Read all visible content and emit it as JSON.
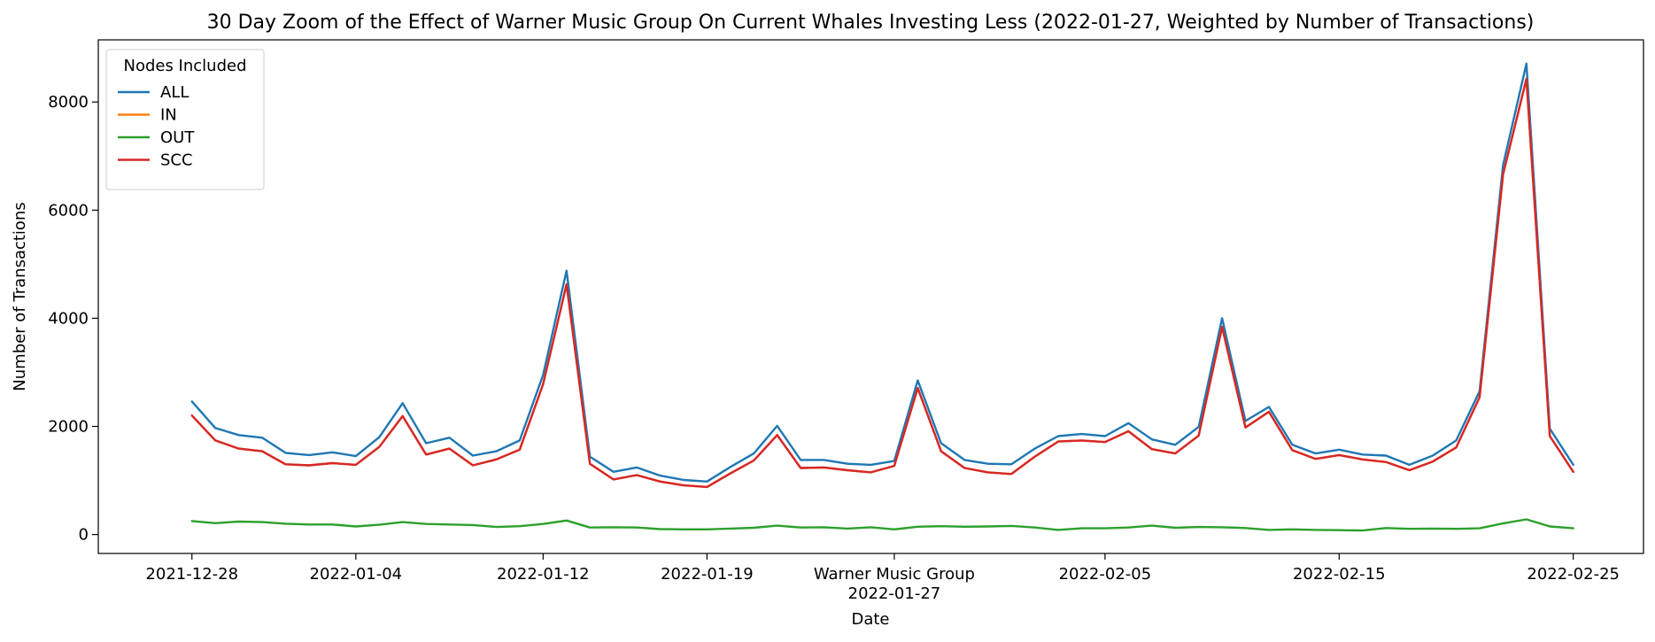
{
  "chart_data": {
    "type": "line",
    "title": "30 Day Zoom of the Effect of Warner Music Group On Current Whales Investing Less (2022-01-27, Weighted by Number of Transactions)",
    "xlabel": "Date",
    "ylabel": "Number of Transactions",
    "ylim": [
      -350,
      9150
    ],
    "xlim": [
      "2021-12-24",
      "2022-02-28"
    ],
    "x_tick_labels": [
      {
        "date": "2021-12-28",
        "label": "2021-12-28"
      },
      {
        "date": "2022-01-04",
        "label": "2022-01-04"
      },
      {
        "date": "2022-01-12",
        "label": "2022-01-12"
      },
      {
        "date": "2022-01-19",
        "label": "2022-01-19"
      },
      {
        "date": "2022-01-27",
        "label": "Warner Music Group\n2022-01-27"
      },
      {
        "date": "2022-02-05",
        "label": "2022-02-05"
      },
      {
        "date": "2022-02-15",
        "label": "2022-02-15"
      },
      {
        "date": "2022-02-25",
        "label": "2022-02-25"
      }
    ],
    "y_ticks": [
      0,
      2000,
      4000,
      6000,
      8000
    ],
    "legend": {
      "title": "Nodes Included",
      "placement": "top-left"
    },
    "x": [
      "2021-12-28",
      "2021-12-29",
      "2021-12-30",
      "2021-12-31",
      "2022-01-01",
      "2022-01-02",
      "2022-01-03",
      "2022-01-04",
      "2022-01-05",
      "2022-01-06",
      "2022-01-07",
      "2022-01-08",
      "2022-01-09",
      "2022-01-10",
      "2022-01-11",
      "2022-01-12",
      "2022-01-13",
      "2022-01-14",
      "2022-01-15",
      "2022-01-16",
      "2022-01-17",
      "2022-01-18",
      "2022-01-19",
      "2022-01-20",
      "2022-01-21",
      "2022-01-22",
      "2022-01-23",
      "2022-01-24",
      "2022-01-25",
      "2022-01-26",
      "2022-01-27",
      "2022-01-28",
      "2022-01-29",
      "2022-01-30",
      "2022-01-31",
      "2022-02-01",
      "2022-02-02",
      "2022-02-03",
      "2022-02-04",
      "2022-02-05",
      "2022-02-06",
      "2022-02-07",
      "2022-02-08",
      "2022-02-09",
      "2022-02-10",
      "2022-02-11",
      "2022-02-12",
      "2022-02-13",
      "2022-02-14",
      "2022-02-15",
      "2022-02-16",
      "2022-02-17",
      "2022-02-18",
      "2022-02-19",
      "2022-02-20",
      "2022-02-21",
      "2022-02-22",
      "2022-02-23",
      "2022-02-24",
      "2022-02-25"
    ],
    "series": [
      {
        "name": "ALL",
        "color": "#1f77b4",
        "values": [
          2460,
          1970,
          1840,
          1790,
          1510,
          1470,
          1520,
          1450,
          1800,
          2430,
          1690,
          1790,
          1460,
          1540,
          1740,
          2950,
          4880,
          1440,
          1160,
          1240,
          1090,
          1010,
          980,
          1250,
          1500,
          2010,
          1380,
          1380,
          1310,
          1290,
          1360,
          2850,
          1690,
          1380,
          1310,
          1300,
          1590,
          1820,
          1860,
          1820,
          2060,
          1760,
          1660,
          1990,
          4000,
          2100,
          2360,
          1660,
          1500,
          1570,
          1480,
          1460,
          1290,
          1460,
          1740,
          2650,
          6830,
          8710,
          1960,
          1290
        ]
      },
      {
        "name": "IN",
        "color": "#ff7f0e",
        "values": [
          2200,
          1740,
          1590,
          1540,
          1300,
          1280,
          1320,
          1290,
          1620,
          2190,
          1480,
          1590,
          1280,
          1390,
          1570,
          2780,
          4630,
          1310,
          1020,
          1100,
          980,
          910,
          880,
          1130,
          1370,
          1840,
          1230,
          1240,
          1190,
          1150,
          1270,
          2710,
          1540,
          1230,
          1150,
          1120,
          1440,
          1720,
          1740,
          1710,
          1910,
          1580,
          1500,
          1830,
          3840,
          1980,
          2270,
          1560,
          1400,
          1470,
          1390,
          1340,
          1190,
          1350,
          1610,
          2540,
          6660,
          8430,
          1820,
          1160
        ]
      },
      {
        "name": "OUT",
        "color": "#2ca02c",
        "values": [
          250,
          210,
          240,
          230,
          200,
          185,
          185,
          150,
          180,
          230,
          195,
          185,
          175,
          140,
          155,
          195,
          260,
          130,
          135,
          130,
          100,
          95,
          95,
          110,
          125,
          165,
          130,
          135,
          110,
          135,
          95,
          145,
          155,
          145,
          150,
          160,
          130,
          85,
          115,
          115,
          130,
          165,
          125,
          140,
          135,
          120,
          85,
          95,
          85,
          80,
          75,
          120,
          105,
          110,
          105,
          115,
          205,
          280,
          150,
          115
        ]
      },
      {
        "name": "SCC",
        "color": "#d62728",
        "values": [
          2200,
          1740,
          1590,
          1540,
          1300,
          1280,
          1320,
          1290,
          1620,
          2190,
          1480,
          1590,
          1280,
          1390,
          1570,
          2780,
          4630,
          1310,
          1020,
          1100,
          980,
          910,
          880,
          1130,
          1370,
          1840,
          1230,
          1240,
          1190,
          1150,
          1270,
          2710,
          1540,
          1230,
          1150,
          1120,
          1440,
          1720,
          1740,
          1710,
          1910,
          1580,
          1500,
          1830,
          3840,
          1980,
          2270,
          1560,
          1400,
          1470,
          1390,
          1340,
          1190,
          1350,
          1610,
          2540,
          6660,
          8430,
          1820,
          1160
        ]
      }
    ]
  }
}
